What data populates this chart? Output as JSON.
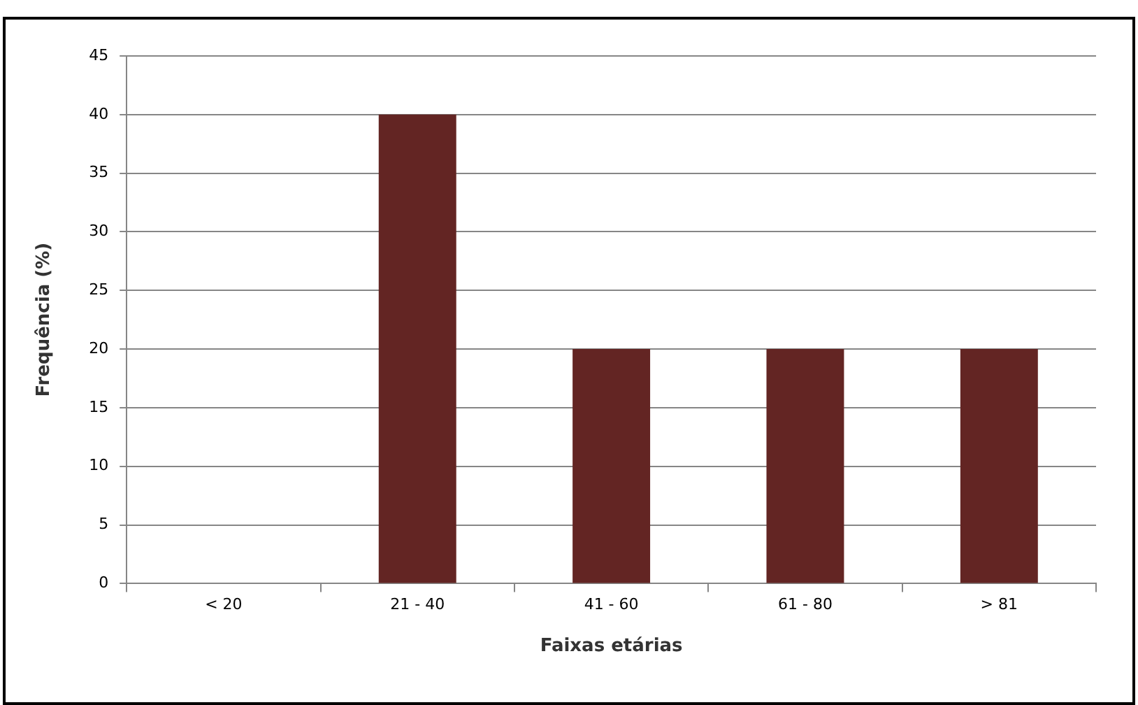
{
  "chart_data": {
    "type": "bar",
    "xlabel": "Faixas etárias",
    "ylabel": "Frequência (%)",
    "categories": [
      "< 20",
      "21 - 40",
      "41 - 60",
      "61 - 80",
      "> 81"
    ],
    "values": [
      0,
      40,
      20,
      20,
      20
    ],
    "color": "#632523",
    "ylim": [
      0,
      45
    ],
    "yticks": [
      0,
      5,
      10,
      15,
      20,
      25,
      30,
      35,
      40,
      45
    ],
    "grid": "y",
    "legend": false
  }
}
